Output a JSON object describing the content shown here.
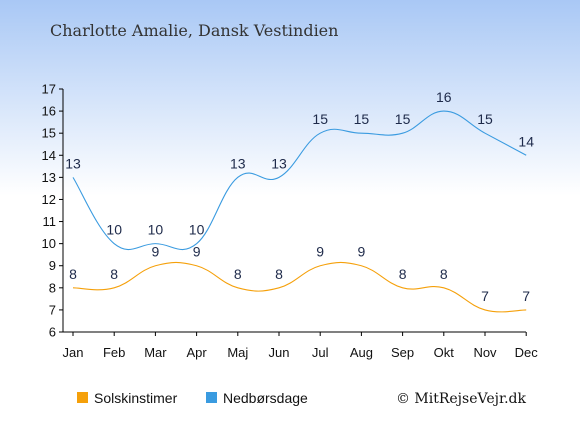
{
  "colors": {
    "background_top": "#a9c8f5",
    "background_bottom": "#ffffff",
    "sunshine": "#f5a00a",
    "rain_days": "#3a9be0",
    "axis": "#000000",
    "label_text": "#1e2a4a"
  },
  "credit": "© MitRejseVejr.dk",
  "chart_data": {
    "type": "line",
    "title": "Charlotte Amalie, Dansk Vestindien",
    "xlabel": "",
    "ylabel": "",
    "categories": [
      "Jan",
      "Feb",
      "Mar",
      "Apr",
      "Maj",
      "Jun",
      "Jul",
      "Aug",
      "Sep",
      "Okt",
      "Nov",
      "Dec"
    ],
    "yticks": [
      6,
      7,
      8,
      9,
      10,
      11,
      12,
      13,
      14,
      15,
      16,
      17
    ],
    "ylim": [
      6,
      17
    ],
    "grid": false,
    "legend_position": "bottom",
    "series": [
      {
        "name": "Solskinstimer",
        "color": "#f5a00a",
        "values": [
          8,
          8,
          9,
          9,
          8,
          8,
          9,
          9,
          8,
          8,
          7,
          7
        ]
      },
      {
        "name": "Nedbørsdage",
        "color": "#3a9be0",
        "values": [
          13,
          10,
          10,
          10,
          13,
          13,
          15,
          15,
          15,
          16,
          15,
          14
        ]
      }
    ]
  }
}
